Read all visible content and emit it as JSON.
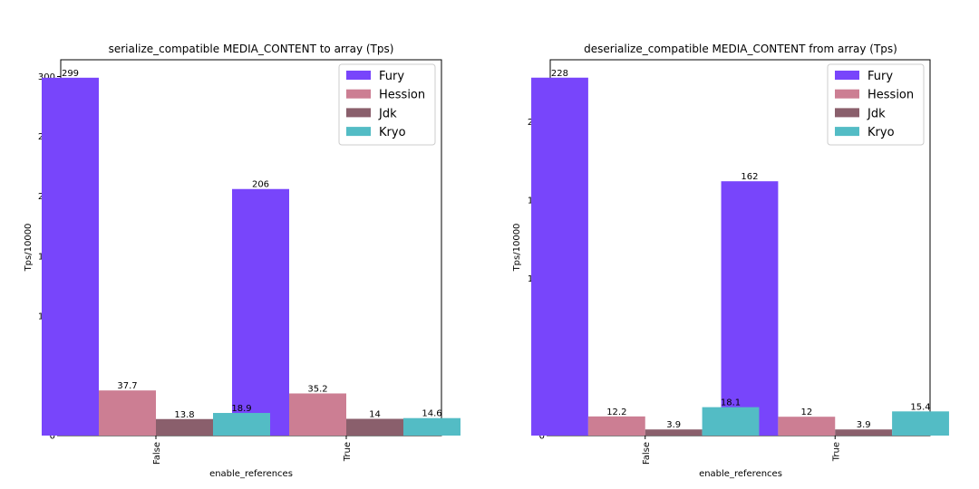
{
  "colors": {
    "Fury": "#7845fb",
    "Hession": "#cc7e93",
    "Jdk": "#8a5f6c",
    "Kryo": "#53bcc5"
  },
  "chart_data": [
    {
      "type": "bar",
      "title": "serialize_compatible MEDIA_CONTENT to array (Tps)",
      "xlabel": "enable_references",
      "ylabel": "Tps/10000",
      "categories": [
        "False",
        "True"
      ],
      "ylim": [
        0,
        314
      ],
      "yticks": [
        0,
        50,
        100,
        150,
        200,
        250,
        300
      ],
      "legend_position": "top-right",
      "series": [
        {
          "name": "Fury",
          "values": [
            299,
            206
          ],
          "labels": [
            "299",
            "206"
          ]
        },
        {
          "name": "Hession",
          "values": [
            37.7,
            35.2
          ],
          "labels": [
            "37.7",
            "35.2"
          ]
        },
        {
          "name": "Jdk",
          "values": [
            13.8,
            14
          ],
          "labels": [
            "13.8",
            "14"
          ]
        },
        {
          "name": "Kryo",
          "values": [
            18.9,
            14.6
          ],
          "labels": [
            "18.9",
            "14.6"
          ]
        }
      ]
    },
    {
      "type": "bar",
      "title": "deserialize_compatible MEDIA_CONTENT from array (Tps)",
      "xlabel": "enable_references",
      "ylabel": "Tps/10000",
      "categories": [
        "False",
        "True"
      ],
      "ylim": [
        0,
        239.4
      ],
      "yticks": [
        0,
        50,
        100,
        150,
        200
      ],
      "legend_position": "top-right",
      "series": [
        {
          "name": "Fury",
          "values": [
            228,
            162
          ],
          "labels": [
            "228",
            "162"
          ]
        },
        {
          "name": "Hession",
          "values": [
            12.2,
            12
          ],
          "labels": [
            "12.2",
            "12"
          ]
        },
        {
          "name": "Jdk",
          "values": [
            3.9,
            3.9
          ],
          "labels": [
            "3.9",
            "3.9"
          ]
        },
        {
          "name": "Kryo",
          "values": [
            18.1,
            15.4
          ],
          "labels": [
            "18.1",
            "15.4"
          ]
        }
      ]
    }
  ]
}
